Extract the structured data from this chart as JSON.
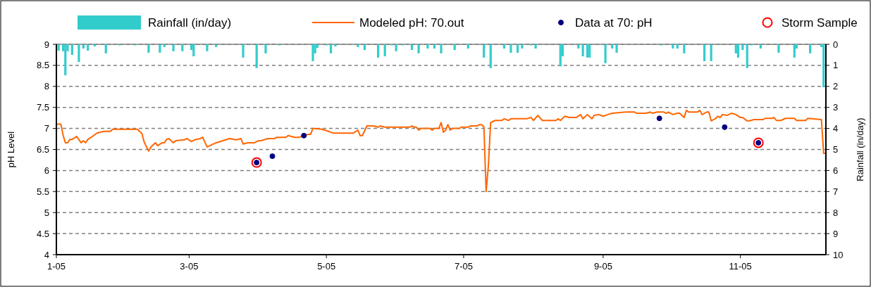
{
  "chart_data": {
    "type": "line",
    "ylabel": "pH Level",
    "y2label": "Rainfall (in/day)",
    "legend": "top",
    "grid": "y",
    "xlim": [
      "2005-01-01",
      "2005-12-09"
    ],
    "xticks": [
      {
        "value": "2005-01-01",
        "label": "1-05"
      },
      {
        "value": "2005-03-01",
        "label": "3-05"
      },
      {
        "value": "2005-05-01",
        "label": "5-05"
      },
      {
        "value": "2005-07-01",
        "label": "7-05"
      },
      {
        "value": "2005-09-01",
        "label": "9-05"
      },
      {
        "value": "2005-11-01",
        "label": "11-05"
      }
    ],
    "ylim": [
      4,
      9
    ],
    "yticks": [
      4,
      4.5,
      5,
      5.5,
      6,
      6.5,
      7,
      7.5,
      8,
      8.5,
      9
    ],
    "y2lim": [
      10,
      0
    ],
    "y2ticks": [
      0,
      1,
      2,
      3,
      4,
      5,
      6,
      7,
      8,
      9,
      10
    ],
    "series": [
      {
        "name": "Rainfall (in/day)",
        "type": "bar",
        "axis": "y2",
        "color": "#33cccc",
        "x": [
          "2005-01-02",
          "2005-01-04",
          "2005-01-05",
          "2005-01-06",
          "2005-01-08",
          "2005-01-11",
          "2005-01-13",
          "2005-01-15",
          "2005-01-18",
          "2005-01-23",
          "2005-01-29",
          "2005-02-05",
          "2005-02-11",
          "2005-02-16",
          "2005-02-18",
          "2005-02-22",
          "2005-02-26",
          "2005-03-02",
          "2005-03-03",
          "2005-03-09",
          "2005-03-13",
          "2005-03-25",
          "2005-03-31",
          "2005-04-04",
          "2005-04-10",
          "2005-04-25",
          "2005-04-26",
          "2005-04-27",
          "2005-05-01",
          "2005-05-03",
          "2005-05-05",
          "2005-05-15",
          "2005-05-18",
          "2005-05-24",
          "2005-05-27",
          "2005-05-30",
          "2005-06-01",
          "2005-06-04",
          "2005-06-08",
          "2005-06-11",
          "2005-06-15",
          "2005-06-18",
          "2005-06-21",
          "2005-06-27",
          "2005-07-03",
          "2005-07-10",
          "2005-07-13",
          "2005-07-19",
          "2005-07-22",
          "2005-07-25",
          "2005-07-27",
          "2005-07-31",
          "2005-08-02",
          "2005-08-13",
          "2005-08-14",
          "2005-08-21",
          "2005-08-23",
          "2005-08-25",
          "2005-08-26",
          "2005-09-02",
          "2005-09-05",
          "2005-09-07",
          "2005-09-27",
          "2005-10-02",
          "2005-10-04",
          "2005-10-07",
          "2005-10-16",
          "2005-10-19",
          "2005-10-30",
          "2005-10-31",
          "2005-11-02",
          "2005-11-04",
          "2005-11-06",
          "2005-11-10",
          "2005-11-18",
          "2005-11-25",
          "2005-11-26",
          "2005-12-02",
          "2005-12-07",
          "2005-12-08"
        ],
        "values": [
          0.3,
          0.33,
          1.47,
          0.33,
          0.5,
          0.84,
          0.2,
          0.3,
          0.1,
          0.43,
          0.05,
          0.05,
          0.4,
          0.4,
          0.13,
          0.33,
          0.33,
          0.27,
          0.57,
          0.33,
          0.13,
          0.63,
          1.13,
          0.43,
          0.05,
          0.8,
          0.43,
          0.17,
          0.05,
          0.43,
          0.1,
          0.13,
          0.27,
          0.63,
          0.57,
          0.05,
          0.33,
          0.05,
          0.27,
          0.43,
          0.2,
          0.2,
          0.43,
          0.27,
          0.2,
          0.63,
          1.13,
          0.2,
          0.4,
          0.4,
          0.2,
          0.05,
          0.2,
          1.05,
          0.57,
          0.2,
          0.57,
          0.63,
          0.63,
          0.9,
          0.2,
          0.4,
          0.05,
          0.2,
          0.2,
          0.43,
          0.8,
          0.8,
          0.43,
          0.63,
          0.27,
          1.13,
          0.05,
          0.2,
          0.4,
          0.63,
          0.2,
          0.43,
          0.13,
          2.04
        ]
      },
      {
        "name": "Modeled pH: 70.out",
        "color": "#ff6600",
        "line_style": "solid",
        "x": [
          "2005-01-01",
          "2005-01-03",
          "2005-01-04",
          "2005-01-05",
          "2005-01-06",
          "2005-01-07",
          "2005-01-08",
          "2005-01-10",
          "2005-01-12",
          "2005-01-13",
          "2005-01-14",
          "2005-01-15",
          "2005-01-17",
          "2005-01-19",
          "2005-01-22",
          "2005-01-25",
          "2005-01-26",
          "2005-02-06",
          "2005-02-08",
          "2005-02-09",
          "2005-02-11",
          "2005-02-12",
          "2005-02-14",
          "2005-02-15",
          "2005-02-17",
          "2005-02-18",
          "2005-02-19",
          "2005-02-20",
          "2005-02-22",
          "2005-02-23",
          "2005-02-27",
          "2005-02-28",
          "2005-03-02",
          "2005-03-04",
          "2005-03-06",
          "2005-03-07",
          "2005-03-09",
          "2005-03-13",
          "2005-03-16",
          "2005-03-19",
          "2005-03-22",
          "2005-03-24",
          "2005-03-25",
          "2005-03-27",
          "2005-03-30",
          "2005-04-01",
          "2005-04-02",
          "2005-04-05",
          "2005-04-08",
          "2005-04-09",
          "2005-04-13",
          "2005-04-14",
          "2005-04-17",
          "2005-04-19",
          "2005-04-21",
          "2005-04-23",
          "2005-04-24",
          "2005-04-25",
          "2005-04-29",
          "2005-05-02",
          "2005-05-04",
          "2005-05-13",
          "2005-05-15",
          "2005-05-16",
          "2005-05-17",
          "2005-05-19",
          "2005-05-22",
          "2005-05-24",
          "2005-05-25",
          "2005-05-27",
          "2005-06-07",
          "2005-06-08",
          "2005-06-09",
          "2005-06-10",
          "2005-06-11",
          "2005-06-12",
          "2005-06-16",
          "2005-06-17",
          "2005-06-18",
          "2005-06-20",
          "2005-06-21",
          "2005-06-22",
          "2005-06-23",
          "2005-06-24",
          "2005-06-25",
          "2005-06-26",
          "2005-06-29",
          "2005-06-30",
          "2005-07-03",
          "2005-07-04",
          "2005-07-07",
          "2005-07-08",
          "2005-07-09",
          "2005-07-10",
          "2005-07-11",
          "2005-07-12",
          "2005-07-13",
          "2005-07-15",
          "2005-07-18",
          "2005-07-19",
          "2005-07-21",
          "2005-07-22",
          "2005-07-29",
          "2005-07-31",
          "2005-08-01",
          "2005-08-03",
          "2005-08-05",
          "2005-08-11",
          "2005-08-12",
          "2005-08-13",
          "2005-08-15",
          "2005-08-17",
          "2005-08-20",
          "2005-08-22",
          "2005-08-23",
          "2005-08-25",
          "2005-08-27",
          "2005-08-28",
          "2005-08-30",
          "2005-09-01",
          "2005-09-03",
          "2005-09-05",
          "2005-09-11",
          "2005-09-15",
          "2005-09-16",
          "2005-09-20",
          "2005-09-22",
          "2005-09-23",
          "2005-09-25",
          "2005-09-28",
          "2005-09-29",
          "2005-09-30",
          "2005-10-02",
          "2005-10-04",
          "2005-10-05",
          "2005-10-07",
          "2005-10-08",
          "2005-10-09",
          "2005-10-13",
          "2005-10-14",
          "2005-10-15",
          "2005-10-17",
          "2005-10-18",
          "2005-10-19",
          "2005-10-21",
          "2005-10-22",
          "2005-10-23",
          "2005-10-24",
          "2005-10-26",
          "2005-10-28",
          "2005-10-30",
          "2005-11-01",
          "2005-11-02",
          "2005-11-04",
          "2005-11-05",
          "2005-11-07",
          "2005-11-11",
          "2005-11-12",
          "2005-11-15",
          "2005-11-16",
          "2005-11-17",
          "2005-11-19",
          "2005-11-21",
          "2005-11-25",
          "2005-11-26",
          "2005-11-30",
          "2005-12-01",
          "2005-12-07",
          "2005-12-08",
          "2005-12-09"
        ],
        "values": [
          7.1,
          7.1,
          6.84,
          6.66,
          6.66,
          6.74,
          6.74,
          6.81,
          6.66,
          6.71,
          6.66,
          6.74,
          6.81,
          6.89,
          6.93,
          6.93,
          6.98,
          6.98,
          6.88,
          6.68,
          6.46,
          6.56,
          6.66,
          6.59,
          6.66,
          6.66,
          6.74,
          6.76,
          6.66,
          6.71,
          6.73,
          6.76,
          6.69,
          6.74,
          6.76,
          6.79,
          6.56,
          6.66,
          6.71,
          6.76,
          6.73,
          6.76,
          6.63,
          6.66,
          6.66,
          6.71,
          6.71,
          6.76,
          6.76,
          6.79,
          6.79,
          6.83,
          6.79,
          6.79,
          6.83,
          6.86,
          6.86,
          7.0,
          6.98,
          6.93,
          6.89,
          6.89,
          6.96,
          6.83,
          6.83,
          7.06,
          7.06,
          7.03,
          7.06,
          7.03,
          7.03,
          7.06,
          7.03,
          7.03,
          6.96,
          7.0,
          7.0,
          6.96,
          7.0,
          7.0,
          7.14,
          6.91,
          6.96,
          7.09,
          6.96,
          7.0,
          7.0,
          7.03,
          7.03,
          7.06,
          7.06,
          7.09,
          7.09,
          7.04,
          5.5,
          6.12,
          7.14,
          7.19,
          7.19,
          7.23,
          7.19,
          7.23,
          7.23,
          7.26,
          7.19,
          7.31,
          7.19,
          7.19,
          7.23,
          7.19,
          7.29,
          7.26,
          7.26,
          7.33,
          7.23,
          7.33,
          7.23,
          7.31,
          7.33,
          7.29,
          7.33,
          7.36,
          7.39,
          7.39,
          7.36,
          7.36,
          7.39,
          7.36,
          7.39,
          7.39,
          7.36,
          7.39,
          7.33,
          7.36,
          7.36,
          7.26,
          7.43,
          7.39,
          7.39,
          7.43,
          7.33,
          7.39,
          7.39,
          7.18,
          7.24,
          7.29,
          7.26,
          7.33,
          7.31,
          7.36,
          7.33,
          7.26,
          7.26,
          7.18,
          7.18,
          7.21,
          7.21,
          7.24,
          7.24,
          7.26,
          7.19,
          7.19,
          7.24,
          7.24,
          7.19,
          7.19,
          7.24,
          7.21,
          6.41,
          6.41
        ]
      },
      {
        "name": "Data at 70: pH",
        "type": "scatter",
        "marker": "circle",
        "color": "#000080",
        "x": [
          "2005-03-31",
          "2005-04-07",
          "2005-04-21",
          "2005-09-26",
          "2005-10-25",
          "2005-11-09"
        ],
        "values": [
          6.19,
          6.34,
          6.83,
          7.24,
          7.03,
          6.66
        ]
      },
      {
        "name": "Storm Sample",
        "type": "scatter",
        "marker": "circle",
        "color": "#ff0000",
        "x": [
          "2005-03-31",
          "2005-11-09"
        ],
        "values": [
          6.19,
          6.66
        ]
      }
    ]
  }
}
